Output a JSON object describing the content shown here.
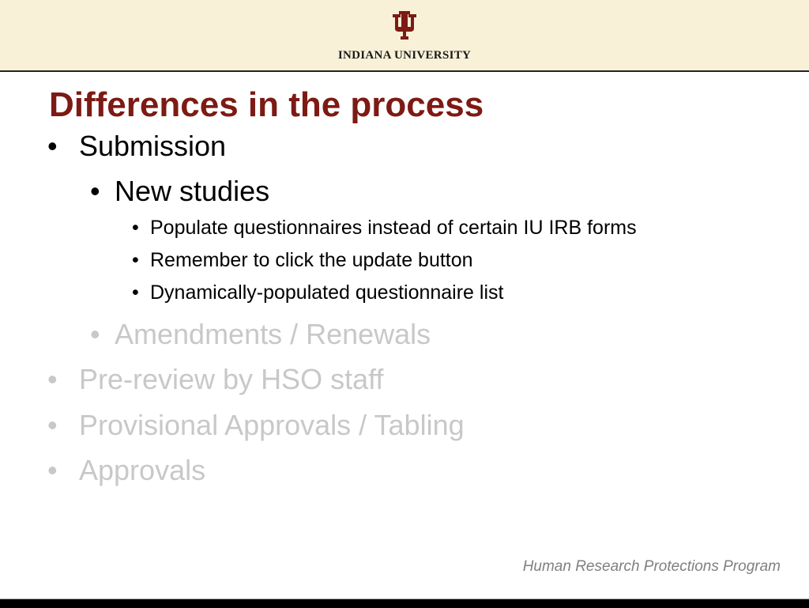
{
  "header": {
    "logo": "IU trident",
    "university": "INDIANA UNIVERSITY",
    "brand_color": "#7d1a14",
    "background": "#f8f1d8"
  },
  "title": "Differences in the process",
  "bullets": [
    {
      "text": "Submission",
      "level": 1,
      "dimmed": false
    },
    {
      "text": "New studies",
      "level": 2,
      "dimmed": false
    },
    {
      "text": "Populate questionnaires instead of certain IU IRB forms",
      "level": 3,
      "dimmed": false
    },
    {
      "text": "Remember to click the update button",
      "level": 3,
      "dimmed": false
    },
    {
      "text": "Dynamically-populated questionnaire list",
      "level": 3,
      "dimmed": false
    },
    {
      "text": "Amendments / Renewals",
      "level": 2,
      "dimmed": true
    },
    {
      "text": "Pre-review by HSO staff",
      "level": 1,
      "dimmed": true
    },
    {
      "text": "Provisional Approvals / Tabling",
      "level": 1,
      "dimmed": true
    },
    {
      "text": "Approvals",
      "level": 1,
      "dimmed": true
    }
  ],
  "bullet_glyph": "•",
  "footer": "Human Research Protections Program"
}
